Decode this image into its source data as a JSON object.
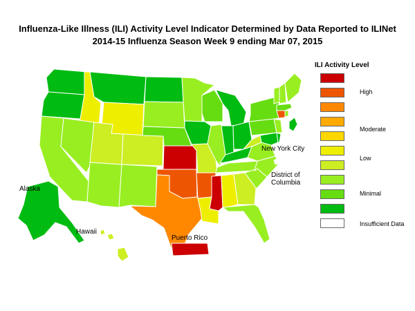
{
  "title_line1": "Influenza-Like Illness (ILI) Activity Level Indicator Determined by Data Reported to ILINet",
  "title_line2": "2014-15  Influenza Season Week  9 ending Mar 07, 2015",
  "legend": {
    "title": "ILI Activity Level",
    "levels": [
      {
        "level": 10,
        "color": "#cc0000"
      },
      {
        "level": 9,
        "color": "#ee5500"
      },
      {
        "level": 8,
        "color": "#ff8800"
      },
      {
        "level": 7,
        "color": "#ffaa00"
      },
      {
        "level": 6,
        "color": "#ffd700"
      },
      {
        "level": 5,
        "color": "#eeee00"
      },
      {
        "level": 4,
        "color": "#ccee22"
      },
      {
        "level": 3,
        "color": "#99ee22"
      },
      {
        "level": 2,
        "color": "#66dd11"
      },
      {
        "level": 1,
        "color": "#00bb11"
      },
      {
        "level": 0,
        "color": "#ffffff"
      }
    ],
    "group_labels": {
      "high": "High",
      "moderate": "Moderate",
      "low": "Low",
      "minimal": "Minimal",
      "insufficient": "Insufficient Data"
    }
  },
  "map_labels": {
    "new_york_city": "New York City",
    "dc": "District of Columbia",
    "alaska": "Alaska",
    "hawaii": "Hawaii",
    "puerto_rico": "Puerto Rico"
  },
  "colors": {
    "high_10": "#cc0000",
    "high_9": "#ee5500",
    "high_8": "#ff8800",
    "low_5": "#eeee00",
    "low_4": "#ccee22",
    "minimal_3": "#99ee22",
    "minimal_2": "#66dd11",
    "minimal_1": "#00bb11"
  }
}
